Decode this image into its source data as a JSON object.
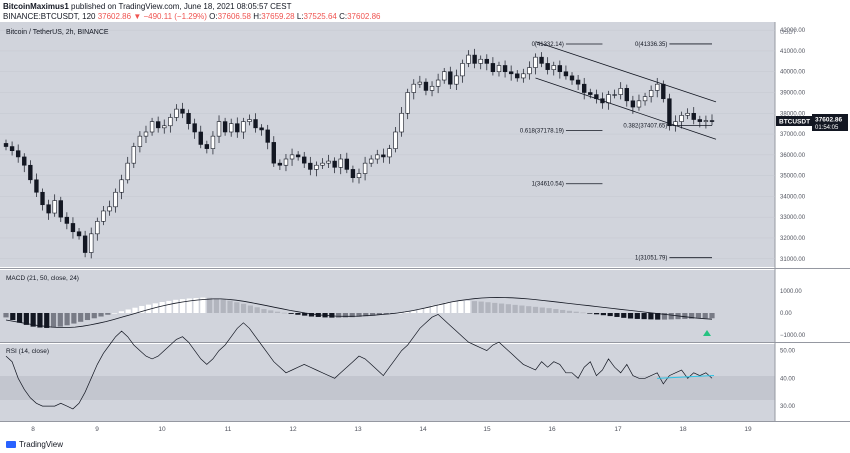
{
  "header": {
    "author": "BitcoinMaximus1",
    "published": "published on TradingView.com, June 18, 2021 08:05:57 CEST",
    "symbol": "BINANCE:BTCUSDT, 120",
    "last": "37602.86",
    "change": "−490.11 (−1.29%)",
    "o_label": "O:",
    "o": "37606.58",
    "h_label": "H:",
    "h": "37659.28",
    "l_label": "L:",
    "l": "37525.64",
    "c_label": "C:",
    "c": "37602.86"
  },
  "pane_title": "Bitcoin / TetherUS, 2h, BINANCE",
  "price_axis": {
    "currency": "USDT",
    "ticks": [
      "42000.00",
      "41000.00",
      "40000.00",
      "39000.00",
      "38000.00",
      "37000.00",
      "36000.00",
      "35000.00",
      "34000.00",
      "33000.00",
      "32000.00",
      "31000.00"
    ]
  },
  "price_label": {
    "symbol": "BTCUSDT",
    "value": "37602.86",
    "countdown": "01:54:05"
  },
  "fib_labels": [
    {
      "text": "0(41332.14)",
      "level": 41332.14
    },
    {
      "text": "0(41336.35)",
      "level": 41336.35
    },
    {
      "text": "0.618(37178.19)",
      "level": 37178.19
    },
    {
      "text": "0.382(37407.65)",
      "level": 37407.65
    },
    {
      "text": "1(34610.54)",
      "level": 34610.54
    },
    {
      "text": "1(31051.79)",
      "level": 31051.79
    }
  ],
  "macd": {
    "title": "MACD (21, 50, close, 24)",
    "ticks": [
      "1000.00",
      "0.00",
      "−1000.00"
    ]
  },
  "rsi": {
    "title": "RSI (14, close)",
    "ticks": [
      "50.00",
      "40.00",
      "30.00"
    ]
  },
  "time_axis": [
    "8",
    "9",
    "10",
    "11",
    "12",
    "13",
    "14",
    "15",
    "16",
    "17",
    "18",
    "19"
  ],
  "branding": "TradingView",
  "colors": {
    "up_candle": "#ffffff",
    "down_candle": "#131722",
    "pane_bg": "#d1d4dc",
    "rsi_trend": "#2ec4e6",
    "macd_arrow": "#26c281"
  },
  "chart_data": {
    "type": "candlestick",
    "title": "Bitcoin / TetherUS, 2h, BINANCE",
    "ylim": [
      30700,
      42200
    ],
    "x_ticks": [
      "8",
      "9",
      "10",
      "11",
      "12",
      "13",
      "14",
      "15",
      "16",
      "17",
      "18",
      "19"
    ],
    "closes": [
      36400,
      36200,
      35900,
      35500,
      34800,
      34200,
      33600,
      33200,
      33800,
      33000,
      32700,
      32300,
      32100,
      31300,
      32200,
      32800,
      33300,
      33500,
      34200,
      34800,
      35600,
      36400,
      36900,
      37100,
      37600,
      37300,
      37400,
      37800,
      38200,
      38000,
      37500,
      37100,
      36500,
      36300,
      36900,
      37600,
      37100,
      37500,
      37100,
      37600,
      37700,
      37300,
      37200,
      36600,
      35600,
      35500,
      35800,
      36000,
      35900,
      35600,
      35300,
      35500,
      35600,
      35700,
      35400,
      35800,
      35300,
      34900,
      35100,
      35600,
      35800,
      36000,
      35900,
      36300,
      37100,
      38000,
      39000,
      39400,
      39500,
      39100,
      39300,
      39600,
      40000,
      39400,
      39800,
      40400,
      40800,
      40400,
      40600,
      40400,
      40000,
      40300,
      40000,
      39900,
      39700,
      39900,
      40200,
      40700,
      40400,
      40100,
      40300,
      40000,
      39800,
      39600,
      39400,
      39000,
      38900,
      38700,
      38500,
      38900,
      38900,
      39200,
      38600,
      38300,
      38600,
      38800,
      39100,
      39400,
      38700,
      37400,
      37600,
      37900,
      38000,
      37700,
      37600,
      37650,
      37602.86
    ],
    "fibonacci": [
      {
        "level": "0",
        "price": 41332.14
      },
      {
        "level": "0",
        "price": 41336.35
      },
      {
        "level": "0.618",
        "price": 37178.19
      },
      {
        "level": "0.382",
        "price": 37407.65
      },
      {
        "level": "1",
        "price": 34610.54
      },
      {
        "level": "1",
        "price": 31051.79
      }
    ],
    "macd_histogram": [
      -200,
      -320,
      -440,
      -540,
      -620,
      -660,
      -680,
      -660,
      -620,
      -560,
      -480,
      -400,
      -320,
      -240,
      -160,
      -80,
      0,
      80,
      160,
      240,
      320,
      380,
      440,
      500,
      550,
      600,
      630,
      660,
      680,
      700,
      690,
      660,
      620,
      560,
      490,
      420,
      340,
      260,
      180,
      120,
      60,
      10,
      -40,
      -80,
      -120,
      -160,
      -180,
      -200,
      -210,
      -210,
      -200,
      -190,
      -170,
      -150,
      -120,
      -90,
      -60,
      -30,
      0,
      50,
      110,
      180,
      260,
      340,
      420,
      480,
      520,
      540,
      550,
      540,
      520,
      490,
      460,
      430,
      400,
      370,
      340,
      310,
      280,
      250,
      220,
      180,
      140,
      100,
      60,
      20,
      -20,
      -60,
      -100,
      -140,
      -180,
      -220,
      -250,
      -270,
      -280,
      -290,
      -300,
      -300,
      -290,
      -280,
      -270,
      -260,
      -250,
      -240,
      -240
    ],
    "macd_line": [
      -320,
      -380,
      -440,
      -500,
      -560,
      -600,
      -640,
      -660,
      -660,
      -640,
      -600,
      -540,
      -470,
      -390,
      -300,
      -200,
      -100,
      0,
      100,
      200,
      290,
      370,
      440,
      500,
      550,
      590,
      620,
      640,
      640,
      620,
      580,
      530,
      470,
      400,
      330,
      260,
      190,
      120,
      60,
      0,
      -50,
      -90,
      -120,
      -140,
      -150,
      -150,
      -140,
      -120,
      -100,
      -70,
      -40,
      0,
      50,
      110,
      180,
      260,
      340,
      420,
      500,
      560,
      610,
      650,
      680,
      700,
      705,
      700,
      690,
      670,
      640,
      610,
      570,
      530,
      490,
      450,
      410,
      370,
      330,
      290,
      250,
      210,
      170,
      130,
      90,
      50,
      10,
      -30,
      -70,
      -110,
      -150,
      -190,
      -230,
      -260,
      -280
    ],
    "rsi": [
      48,
      46,
      40,
      36,
      33,
      31,
      30,
      30,
      30,
      31,
      30,
      29,
      31,
      35,
      40,
      45,
      49,
      52,
      55,
      57,
      55,
      52,
      50,
      48,
      47,
      48,
      50,
      52,
      54,
      55,
      53,
      50,
      47,
      45,
      47,
      50,
      52,
      55,
      58,
      60,
      58,
      55,
      52,
      49,
      46,
      44,
      42,
      43,
      44,
      45,
      44,
      43,
      42,
      41,
      40,
      42,
      44,
      46,
      48,
      47,
      45,
      43,
      41,
      44,
      47,
      50,
      52,
      55,
      58,
      60,
      62,
      63,
      61,
      59,
      57,
      55,
      53,
      52,
      51,
      50,
      52,
      53,
      51,
      49,
      47,
      45,
      44,
      43,
      46,
      44,
      46,
      45,
      42,
      42,
      40,
      44,
      46,
      41,
      43,
      47,
      44,
      42,
      45,
      41,
      40,
      40,
      41,
      42,
      38,
      41,
      42,
      43,
      40,
      42,
      41,
      42,
      40
    ],
    "rsi_ylim": [
      25,
      52
    ]
  }
}
